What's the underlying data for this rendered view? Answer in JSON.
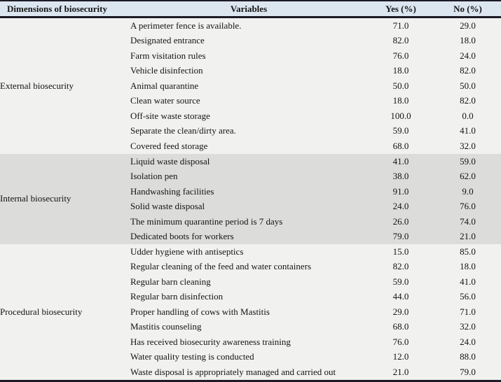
{
  "table": {
    "columns": [
      {
        "label": "Dimensions of biosecurity"
      },
      {
        "label": "Variables"
      },
      {
        "label": "Yes (%)"
      },
      {
        "label": "No (%)"
      }
    ],
    "sections": [
      {
        "dimension": "External biosecurity",
        "shaded": false,
        "rows": [
          {
            "variable": "A perimeter fence is available.",
            "yes": "71.0",
            "no": "29.0"
          },
          {
            "variable": "Designated entrance",
            "yes": "82.0",
            "no": "18.0"
          },
          {
            "variable": "Farm visitation rules",
            "yes": "76.0",
            "no": "24.0"
          },
          {
            "variable": "Vehicle disinfection",
            "yes": "18.0",
            "no": "82.0"
          },
          {
            "variable": "Animal quarantine",
            "yes": "50.0",
            "no": "50.0"
          },
          {
            "variable": "Clean water source",
            "yes": "18.0",
            "no": "82.0"
          },
          {
            "variable": "Off-site waste storage",
            "yes": "100.0",
            "no": "0.0"
          },
          {
            "variable": "Separate the clean/dirty area.",
            "yes": "59.0",
            "no": "41.0"
          },
          {
            "variable": "Covered feed storage",
            "yes": "68.0",
            "no": "32.0"
          }
        ]
      },
      {
        "dimension": "Internal biosecurity",
        "shaded": true,
        "rows": [
          {
            "variable": "Liquid waste disposal",
            "yes": "41.0",
            "no": "59.0"
          },
          {
            "variable": "Isolation pen",
            "yes": "38.0",
            "no": "62.0"
          },
          {
            "variable": "Handwashing facilities",
            "yes": "91.0",
            "no": "9.0"
          },
          {
            "variable": "Solid waste disposal",
            "yes": "24.0",
            "no": "76.0"
          },
          {
            "variable": "The minimum quarantine period is 7 days",
            "yes": "26.0",
            "no": "74.0"
          },
          {
            "variable": "Dedicated boots for workers",
            "yes": "79.0",
            "no": "21.0"
          }
        ]
      },
      {
        "dimension": "Procedural biosecurity",
        "shaded": false,
        "rows": [
          {
            "variable": "Udder hygiene with antiseptics",
            "yes": "15.0",
            "no": "85.0"
          },
          {
            "variable": "Regular cleaning of the feed and water containers",
            "yes": "82.0",
            "no": "18.0"
          },
          {
            "variable": "Regular barn cleaning",
            "yes": "59.0",
            "no": "41.0"
          },
          {
            "variable": "Regular barn disinfection",
            "yes": "44.0",
            "no": "56.0"
          },
          {
            "variable": "Proper handling of cows with Mastitis",
            "yes": "29.0",
            "no": "71.0"
          },
          {
            "variable": "Mastitis counseling",
            "yes": "68.0",
            "no": "32.0"
          },
          {
            "variable": "Has received biosecurity awareness training",
            "yes": "76.0",
            "no": "24.0"
          },
          {
            "variable": "Water quality testing is conducted",
            "yes": "12.0",
            "no": "88.0"
          },
          {
            "variable": "Waste disposal is appropriately managed and carried out",
            "yes": "21.0",
            "no": "79.0"
          }
        ]
      }
    ]
  },
  "colors": {
    "header_bg": "#dce6f1",
    "section_bg": "#f1f1ef",
    "section_shaded_bg": "#dcdcda",
    "border": "#1b1b26",
    "text": "#141414"
  }
}
